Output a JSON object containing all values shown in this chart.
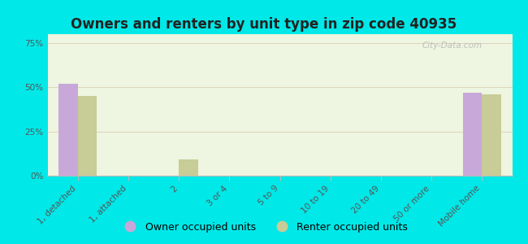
{
  "title": "Owners and renters by unit type in zip code 40935",
  "categories": [
    "1, detached",
    "1, attached",
    "2",
    "3 or 4",
    "5 to 9",
    "10 to 19",
    "20 to 49",
    "50 or more",
    "Mobile home"
  ],
  "owner_values": [
    52,
    0,
    0,
    0,
    0,
    0,
    0,
    0,
    47
  ],
  "renter_values": [
    45,
    0,
    9,
    0,
    0,
    0,
    0,
    0,
    46
  ],
  "owner_color": "#c8a8d8",
  "renter_color": "#c8cc96",
  "background_color": "#00e8e8",
  "plot_bg": "#eef5e0",
  "ylabel_ticks": [
    "0%",
    "25%",
    "50%",
    "75%"
  ],
  "ytick_values": [
    0,
    25,
    50,
    75
  ],
  "ylim": [
    0,
    80
  ],
  "bar_width": 0.38,
  "watermark": "City-Data.com",
  "legend_owner": "Owner occupied units",
  "legend_renter": "Renter occupied units",
  "title_fontsize": 12,
  "tick_fontsize": 7.5,
  "legend_fontsize": 9
}
